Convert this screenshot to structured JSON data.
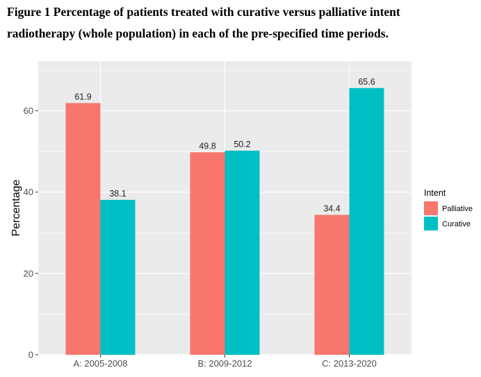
{
  "caption": {
    "line1": "Figure 1 Percentage of patients treated with curative versus palliative intent",
    "line2": "radiotherapy (whole population) in each of the pre-specified time periods."
  },
  "colors": {
    "palliative": "#F8766D",
    "curative": "#00BFC4",
    "panel_bg": "#EBEBEB",
    "grid": "#FFFFFF"
  },
  "chart_data": {
    "type": "bar",
    "categories": [
      "A: 2005-2008",
      "B: 2009-2012",
      "C: 2013-2020"
    ],
    "series": [
      {
        "name": "Palliative",
        "values": [
          61.9,
          49.8,
          34.4
        ]
      },
      {
        "name": "Curative",
        "values": [
          38.1,
          50.2,
          65.6
        ]
      }
    ],
    "data_labels": [
      [
        "61.9",
        "49.8",
        "34.4"
      ],
      [
        "38.1",
        "50.2",
        "65.6"
      ]
    ],
    "xlabel": "",
    "ylabel": "Percentage",
    "ylim": [
      0,
      70
    ],
    "yticks": [
      0,
      20,
      40,
      60
    ],
    "ytick_labels": [
      "0",
      "20",
      "40",
      "60"
    ],
    "legend_title": "Intent",
    "legend_position": "right",
    "grid": true
  }
}
